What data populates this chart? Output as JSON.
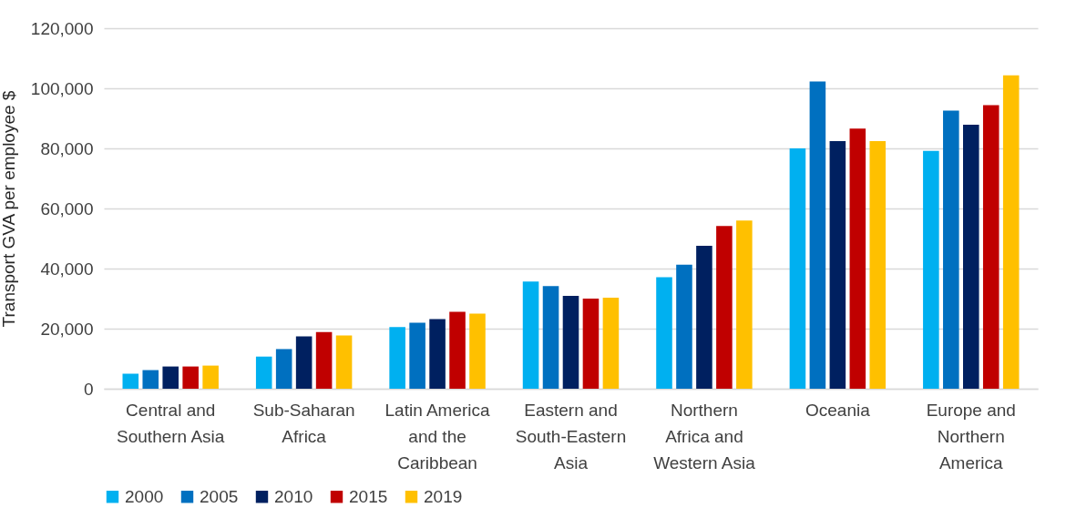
{
  "chart_data": {
    "type": "bar",
    "ylabel": "Transport GVA per employee $",
    "categories": [
      "Central and Southern Asia",
      "Sub-Saharan Africa",
      "Latin America and the Caribbean",
      "Eastern and South-Eastern Asia",
      "Northern Africa and Western Asia",
      "Oceania",
      "Europe and Northern America"
    ],
    "series": [
      {
        "name": "2000",
        "color": "#00b0f0",
        "values": [
          5000,
          10700,
          20500,
          35700,
          37100,
          80000,
          79200
        ]
      },
      {
        "name": "2005",
        "color": "#0070c0",
        "values": [
          6200,
          13200,
          22000,
          34200,
          41300,
          102300,
          92600
        ]
      },
      {
        "name": "2010",
        "color": "#002060",
        "values": [
          7400,
          17400,
          23200,
          30900,
          47600,
          82400,
          87900
        ]
      },
      {
        "name": "2015",
        "color": "#c00000",
        "values": [
          7400,
          18900,
          25600,
          30000,
          54200,
          86600,
          94400
        ]
      },
      {
        "name": "2019",
        "color": "#ffc000",
        "values": [
          7700,
          17700,
          25000,
          30300,
          56000,
          82400,
          104300
        ]
      }
    ],
    "ylim": [
      0,
      120000
    ],
    "yticks": [
      0,
      {
        "value": 20000,
        "label": "20,000"
      },
      {
        "value": 40000,
        "label": "40,000"
      },
      {
        "value": 60000,
        "label": "60,000"
      },
      {
        "value": 80000,
        "label": "80,000"
      },
      {
        "value": 100000,
        "label": "100,000"
      },
      {
        "value": 120000,
        "label": "120,000"
      }
    ],
    "grid": "y",
    "legend": "bottom"
  }
}
